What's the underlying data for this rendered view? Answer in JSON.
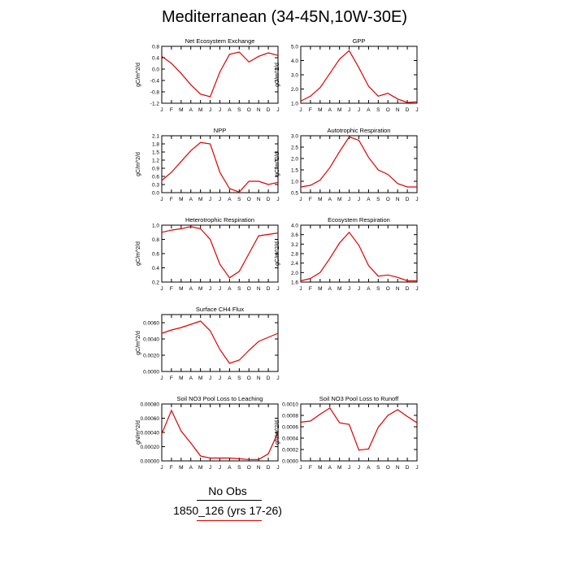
{
  "title": "Mediterranean (34-45N,10W-30E)",
  "legend": {
    "obs_label": "No Obs",
    "model_label": "1850_126 (yrs 17-26)",
    "obs_color": "#000000",
    "model_color": "#e00000"
  },
  "chart_data": [
    {
      "type": "line",
      "title": "Net Ecosystem Exchange",
      "ylabel": "gC/m^2/d",
      "categories": [
        "J",
        "F",
        "M",
        "A",
        "M",
        "J",
        "J",
        "A",
        "S",
        "O",
        "N",
        "D",
        "J"
      ],
      "yticks": [
        "0.8",
        "0.4",
        "0.0",
        "-0.4",
        "-0.8",
        "-1.2"
      ],
      "ylim": [
        -1.2,
        0.8
      ],
      "series": [
        {
          "values": [
            0.45,
            0.2,
            -0.15,
            -0.55,
            -0.88,
            -0.97,
            -0.1,
            0.52,
            0.6,
            0.25,
            0.45,
            0.57,
            0.48
          ]
        }
      ]
    },
    {
      "type": "line",
      "title": "GPP",
      "ylabel": "gC/m^2/d",
      "categories": [
        "J",
        "F",
        "M",
        "A",
        "M",
        "J",
        "J",
        "A",
        "S",
        "O",
        "N",
        "D",
        "J"
      ],
      "yticks": [
        "5.0",
        "4.0",
        "3.0",
        "2.0",
        "1.0"
      ],
      "ylim": [
        1.0,
        5.0
      ],
      "series": [
        {
          "values": [
            1.15,
            1.5,
            2.1,
            3.1,
            4.1,
            4.7,
            3.5,
            2.2,
            1.5,
            1.7,
            1.3,
            1.05,
            1.1
          ]
        }
      ]
    },
    {
      "type": "line",
      "title": "NPP",
      "ylabel": "gC/m^2/d",
      "categories": [
        "J",
        "F",
        "M",
        "A",
        "M",
        "J",
        "J",
        "A",
        "S",
        "O",
        "N",
        "D",
        "J"
      ],
      "yticks": [
        "2.1",
        "1.8",
        "1.5",
        "1.2",
        "0.9",
        "0.6",
        "0.3",
        "0.0"
      ],
      "ylim": [
        0.0,
        2.1
      ],
      "series": [
        {
          "values": [
            0.45,
            0.75,
            1.15,
            1.55,
            1.85,
            1.8,
            0.75,
            0.15,
            0.02,
            0.42,
            0.42,
            0.3,
            0.38
          ]
        }
      ]
    },
    {
      "type": "line",
      "title": "Autotrophic Respiration",
      "ylabel": "gC/m^2/d",
      "categories": [
        "J",
        "F",
        "M",
        "A",
        "M",
        "J",
        "J",
        "A",
        "S",
        "O",
        "N",
        "D",
        "J"
      ],
      "yticks": [
        "3.0",
        "2.5",
        "2.0",
        "1.5",
        "1.0",
        "0.5"
      ],
      "ylim": [
        0.5,
        3.0
      ],
      "series": [
        {
          "values": [
            0.75,
            0.82,
            1.05,
            1.6,
            2.3,
            2.95,
            2.8,
            2.05,
            1.5,
            1.3,
            0.9,
            0.75,
            0.75
          ]
        }
      ]
    },
    {
      "type": "line",
      "title": "Heterotrophic Respiration",
      "ylabel": "gC/m^2/d",
      "categories": [
        "J",
        "F",
        "M",
        "A",
        "M",
        "J",
        "J",
        "A",
        "S",
        "O",
        "N",
        "D",
        "J"
      ],
      "yticks": [
        "1.0",
        "0.8",
        "0.6",
        "0.4",
        "0.2"
      ],
      "ylim": [
        0.2,
        1.0
      ],
      "series": [
        {
          "values": [
            0.9,
            0.93,
            0.95,
            0.98,
            0.95,
            0.8,
            0.45,
            0.26,
            0.35,
            0.6,
            0.85,
            0.87,
            0.89
          ]
        }
      ]
    },
    {
      "type": "line",
      "title": "Ecosystem Respiration",
      "ylabel": "gC/m^2/d",
      "categories": [
        "J",
        "F",
        "M",
        "A",
        "M",
        "J",
        "J",
        "A",
        "S",
        "O",
        "N",
        "D",
        "J"
      ],
      "yticks": [
        "4.0",
        "3.6",
        "3.2",
        "2.8",
        "2.4",
        "2.0",
        "1.6"
      ],
      "ylim": [
        1.6,
        4.0
      ],
      "series": [
        {
          "values": [
            1.65,
            1.75,
            2.0,
            2.6,
            3.25,
            3.7,
            3.15,
            2.3,
            1.85,
            1.9,
            1.8,
            1.65,
            1.65
          ]
        }
      ]
    },
    {
      "type": "line",
      "title": "Surface CH4 Flux",
      "ylabel": "gC/m^2/d",
      "categories": [
        "J",
        "F",
        "M",
        "A",
        "M",
        "J",
        "J",
        "A",
        "S",
        "O",
        "N",
        "D",
        "J"
      ],
      "yticks": [
        "0.0060",
        "0.0040",
        "0.0020",
        "0.0000"
      ],
      "ylim": [
        0.0,
        0.007
      ],
      "series": [
        {
          "values": [
            0.0047,
            0.0051,
            0.0054,
            0.0058,
            0.0062,
            0.005,
            0.0027,
            0.001,
            0.0014,
            0.0026,
            0.0037,
            0.0042,
            0.0047
          ]
        }
      ]
    },
    {
      "type": "line",
      "title": "Soil NO3 Pool Loss to Leaching",
      "ylabel": "gN/m^2/d",
      "categories": [
        "J",
        "F",
        "M",
        "A",
        "M",
        "J",
        "J",
        "A",
        "S",
        "O",
        "N",
        "D",
        "J"
      ],
      "yticks": [
        "0.00080",
        "0.00060",
        "0.00040",
        "0.00020",
        "0.00000"
      ],
      "ylim": [
        0.0,
        0.0008
      ],
      "series": [
        {
          "values": [
            0.00038,
            0.00071,
            0.00042,
            0.00025,
            7e-05,
            4e-05,
            4e-05,
            4e-05,
            3e-05,
            2e-05,
            2e-05,
            0.0001,
            0.0004
          ]
        }
      ]
    },
    {
      "type": "line",
      "title": "Soil NO3 Pool Loss to Runoff",
      "ylabel": "gN/m^2/d",
      "categories": [
        "J",
        "F",
        "M",
        "A",
        "M",
        "J",
        "J",
        "A",
        "S",
        "O",
        "N",
        "D",
        "J"
      ],
      "yticks": [
        "0.0010",
        "0.0008",
        "0.0006",
        "0.0004",
        "0.0002",
        "0.0000"
      ],
      "ylim": [
        0.0,
        0.001
      ],
      "series": [
        {
          "values": [
            0.00068,
            0.0007,
            0.00082,
            0.00093,
            0.00067,
            0.00064,
            0.00019,
            0.00021,
            0.00059,
            0.0008,
            0.0009,
            0.00078,
            0.00067
          ]
        }
      ]
    }
  ]
}
